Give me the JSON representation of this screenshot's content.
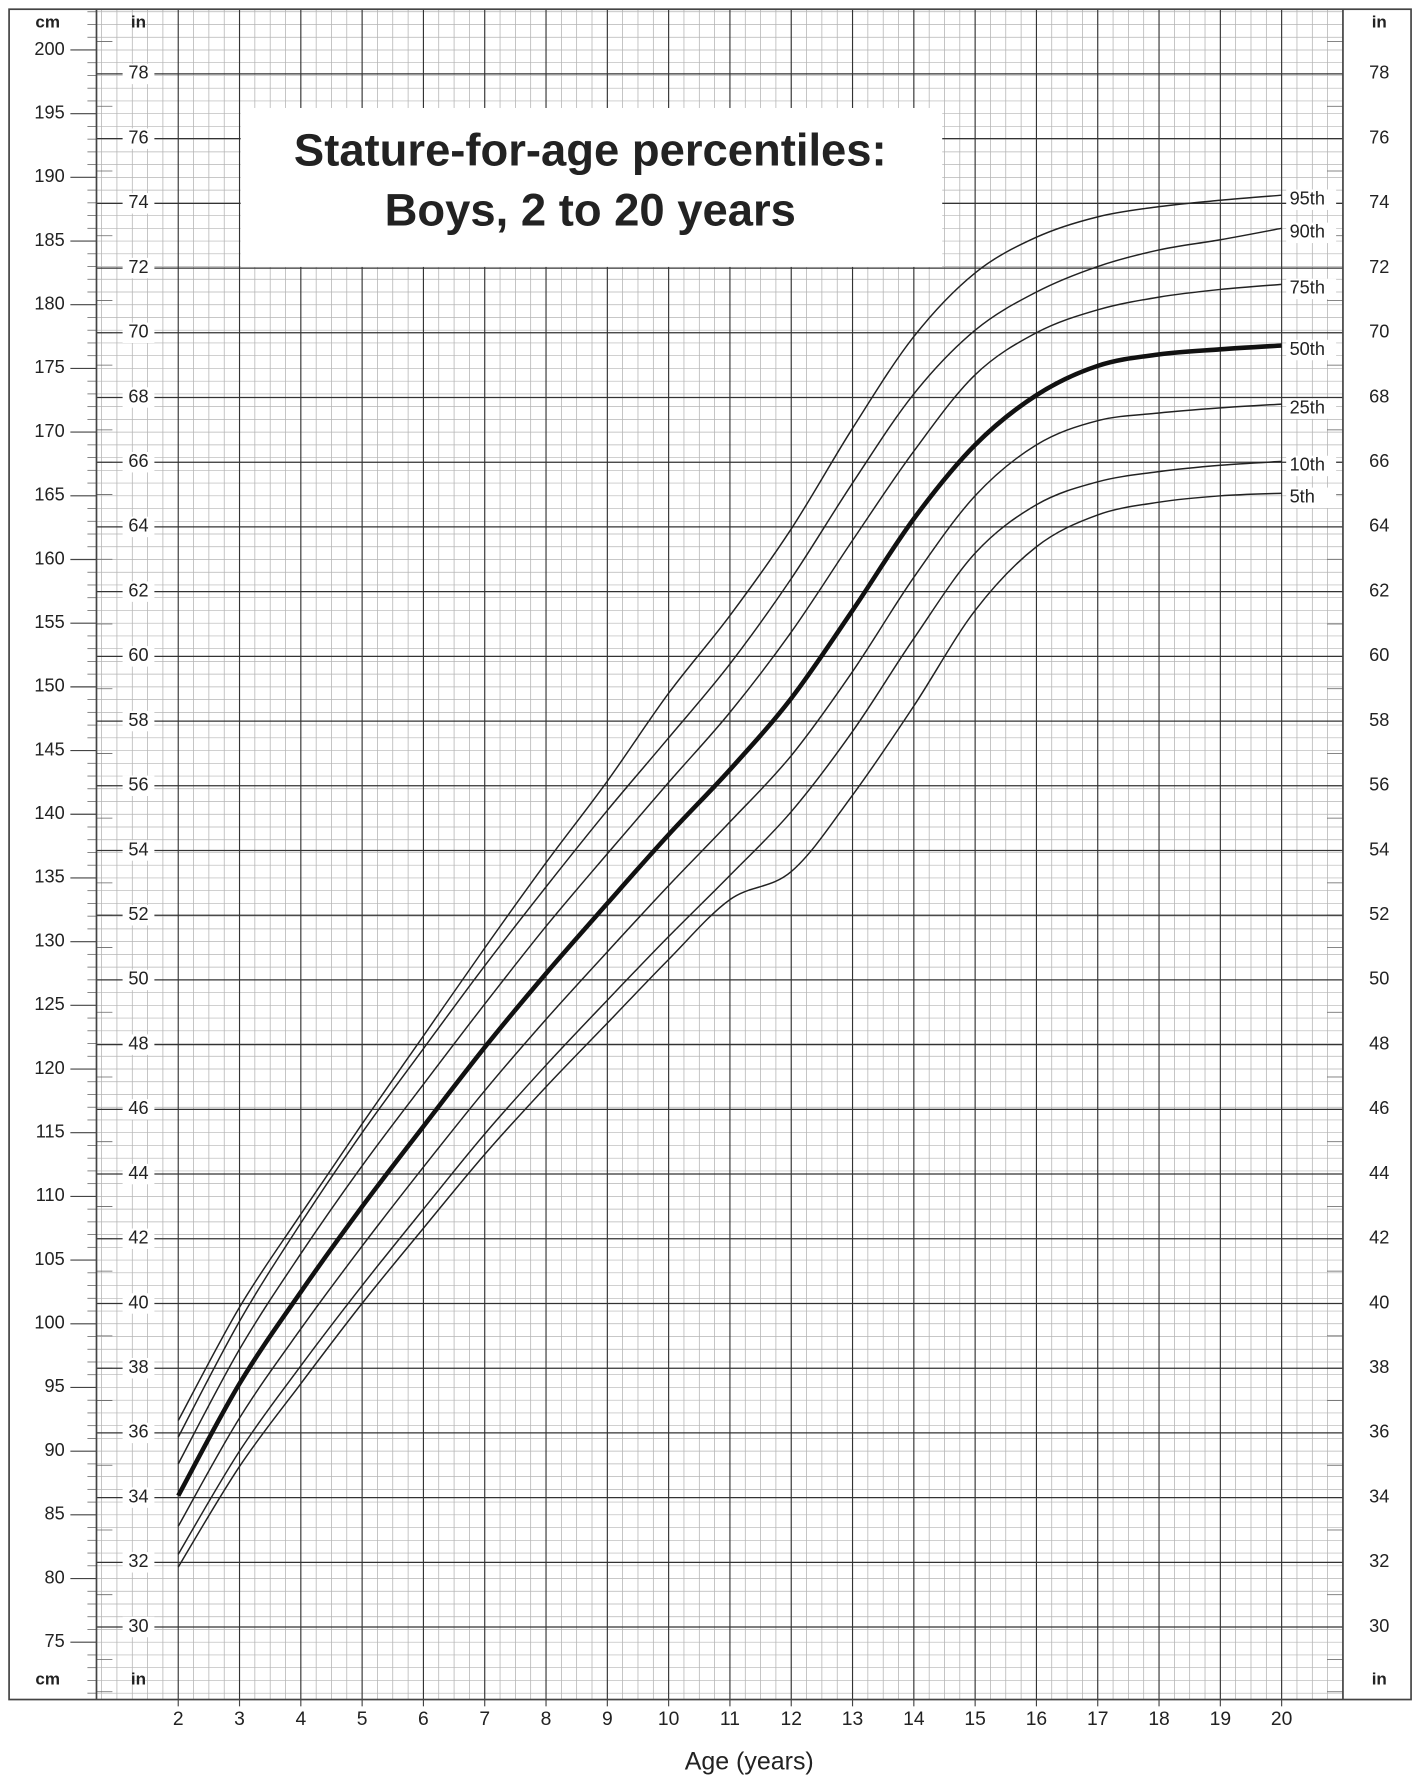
{
  "chart_data": {
    "type": "line",
    "title": "Stature-for-age percentiles:",
    "subtitle": "Boys, 2 to 20 years",
    "xlabel": "Age (years)",
    "y_unit": "cm",
    "y2_unit": "in",
    "x": [
      2,
      3,
      4,
      5,
      6,
      7,
      8,
      9,
      10,
      11,
      12,
      13,
      14,
      15,
      16,
      17,
      18,
      19,
      20
    ],
    "xlim": [
      2,
      21
    ],
    "xticks": [
      2,
      3,
      4,
      5,
      6,
      7,
      8,
      9,
      10,
      11,
      12,
      13,
      14,
      15,
      16,
      17,
      18,
      19,
      20
    ],
    "ylim": [
      70.5,
      203.2
    ],
    "yticks": [
      75,
      80,
      85,
      90,
      95,
      100,
      105,
      110,
      115,
      120,
      125,
      130,
      135,
      140,
      145,
      150,
      155,
      160,
      165,
      170,
      175,
      180,
      185,
      190,
      195,
      200
    ],
    "y2lim": [
      27.76,
      80
    ],
    "y2ticks": [
      30,
      32,
      34,
      36,
      38,
      40,
      42,
      44,
      46,
      48,
      50,
      52,
      54,
      56,
      58,
      60,
      62,
      64,
      66,
      68,
      70,
      72,
      74,
      76,
      78
    ],
    "grid": true,
    "series": [
      {
        "name": "95th",
        "color": "#222222",
        "width": 1.3,
        "values": [
          92.4,
          101.3,
          108.6,
          115.7,
          122.6,
          129.5,
          136.2,
          142.6,
          149.5,
          155.6,
          162.4,
          170.3,
          177.5,
          182.5,
          185.3,
          186.9,
          187.7,
          188.2,
          188.6
        ]
      },
      {
        "name": "90th",
        "color": "#222222",
        "width": 1.3,
        "values": [
          91.1,
          100.2,
          107.9,
          115.0,
          121.6,
          128.1,
          134.3,
          140.3,
          146.0,
          151.8,
          158.5,
          166.0,
          173.0,
          178.0,
          181.0,
          183.0,
          184.3,
          185.1,
          186.0
        ]
      },
      {
        "name": "75th",
        "color": "#222222",
        "width": 1.3,
        "values": [
          89.0,
          98.0,
          105.5,
          112.4,
          118.8,
          125.1,
          131.2,
          136.9,
          142.5,
          148.0,
          154.3,
          161.5,
          168.5,
          174.5,
          177.8,
          179.6,
          180.6,
          181.2,
          181.6
        ]
      },
      {
        "name": "50th",
        "color": "#111111",
        "width": 4,
        "values": [
          86.5,
          95.3,
          102.5,
          109.2,
          115.5,
          121.7,
          127.5,
          133.0,
          138.4,
          143.5,
          149.1,
          156.0,
          163.2,
          169.0,
          172.9,
          175.2,
          176.1,
          176.5,
          176.8
        ]
      },
      {
        "name": "25th",
        "color": "#222222",
        "width": 1.3,
        "values": [
          84.1,
          92.6,
          99.6,
          106.1,
          112.3,
          118.3,
          123.9,
          129.2,
          134.4,
          139.4,
          144.6,
          151.2,
          158.6,
          165.0,
          169.0,
          170.9,
          171.5,
          171.9,
          172.2
        ]
      },
      {
        "name": "10th",
        "color": "#222222",
        "width": 1.3,
        "values": [
          81.9,
          90.0,
          96.7,
          103.0,
          109.0,
          114.9,
          120.3,
          125.4,
          130.4,
          135.2,
          140.2,
          146.5,
          153.8,
          160.5,
          164.3,
          166.1,
          166.9,
          167.4,
          167.7
        ]
      },
      {
        "name": "5th",
        "color": "#222222",
        "width": 1.3,
        "values": [
          80.9,
          88.8,
          95.3,
          101.6,
          107.5,
          113.3,
          118.6,
          123.6,
          128.6,
          133.3,
          135.5,
          141.5,
          148.5,
          156.0,
          161.0,
          163.5,
          164.5,
          165.0,
          165.2
        ]
      }
    ]
  }
}
